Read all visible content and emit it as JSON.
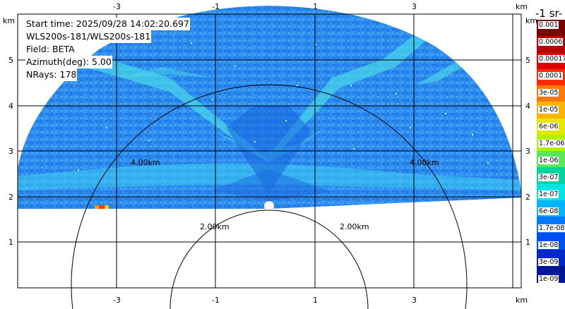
{
  "plot": {
    "info_lines": [
      "Start time: 2025/09/28 14:02:20.697",
      "WLS200s-181/WLS200s-181",
      "Field: BETA",
      "Azimuth(deg): 5.00",
      "NRays: 178"
    ],
    "axis_unit": "km",
    "x_ticks": [
      "-3",
      "-1",
      "1",
      "3"
    ],
    "y_ticks": [
      "1",
      "2",
      "3",
      "4",
      "5"
    ],
    "range_rings": [
      "2.00km",
      "4.00km"
    ]
  },
  "colorbar": {
    "title": "-1 sr-",
    "labels": [
      "0.001",
      "0.0006",
      "0.00017",
      "0.0001",
      "3e-05",
      "1e-05",
      "6e-06",
      "1.7e-06",
      "1e-06",
      "3e-07",
      "1e-07",
      "6e-08",
      "1.7e-08",
      "1e-08",
      "3e-09",
      "1e-09"
    ],
    "colors": [
      "#7a0000",
      "#b80000",
      "#e00000",
      "#ff2a00",
      "#ff7800",
      "#ffb400",
      "#e6e600",
      "#b4f000",
      "#5ae65a",
      "#00d2a0",
      "#00e6e6",
      "#00b4ff",
      "#0078ff",
      "#0050f0",
      "#0028c8",
      "#001496"
    ]
  }
}
